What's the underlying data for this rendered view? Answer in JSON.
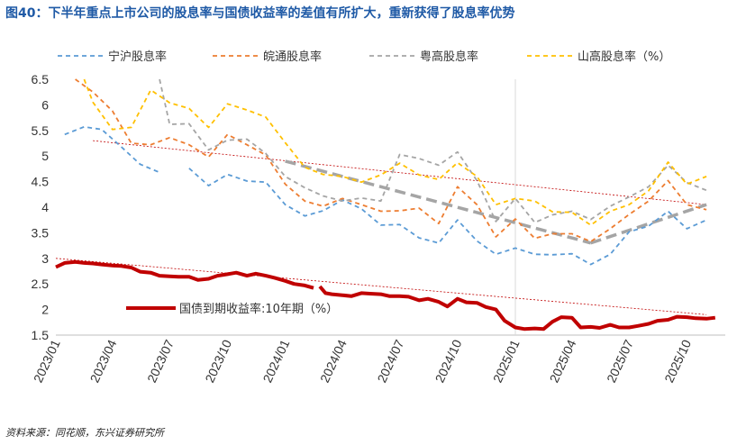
{
  "source": "资料来源：同花顺，东兴证券研究所",
  "colors": {
    "ningbo": "#5b9bd5",
    "anhui": "#ed7d31",
    "guangdong": "#a5a5a5",
    "shandong": "#ffc000",
    "bond": "#c00000",
    "trend_bond": "#c00000",
    "trend_yield": "#a5a5a5"
  },
  "chart_data": {
    "type": "line",
    "title": "图40：下半年重点上市公司的股息率与国债收益率的差值有所扩大，重新获得了股息率优势",
    "ylim": [
      1.5,
      6.5
    ],
    "yticks": [
      "6.5",
      "6",
      "5.5",
      "5",
      "4.5",
      "4",
      "3.5",
      "3",
      "2.5",
      "2",
      "1.5"
    ],
    "xticks": [
      "2023/01",
      "2023/04",
      "2023/07",
      "2023/10",
      "2024/01",
      "2024/04",
      "2024/07",
      "2024/10",
      "2025/01",
      "2025/04",
      "2025/07",
      "2025/10"
    ],
    "x_start": "2023-01-01",
    "x_end": "2025-12-01",
    "legend": {
      "ningbo": "宁沪股息率",
      "anhui": "皖通股息率",
      "guangdong": "粤高股息率",
      "shandong": "山高股息率（%）",
      "bond": "国债到期收益率:10年期（%）"
    },
    "series": [
      {
        "key": "ningbo",
        "name": "宁沪股息率",
        "style": "dashed",
        "segments": [
          [
            [
              "2023-01-15",
              5.42
            ],
            [
              "2023-02-15",
              5.57
            ],
            [
              "2023-03-15",
              5.52
            ],
            [
              "2023-04-15",
              5.18
            ],
            [
              "2023-05-15",
              4.84
            ],
            [
              "2023-06-15",
              4.68
            ]
          ],
          [
            [
              "2023-08-01",
              4.76
            ],
            [
              "2023-09-01",
              4.42
            ],
            [
              "2023-10-01",
              4.64
            ],
            [
              "2023-11-01",
              4.51
            ],
            [
              "2023-12-01",
              4.49
            ],
            [
              "2024-01-01",
              4.05
            ],
            [
              "2024-02-01",
              3.83
            ],
            [
              "2024-03-01",
              3.93
            ],
            [
              "2024-04-01",
              4.14
            ],
            [
              "2024-05-01",
              3.97
            ],
            [
              "2024-06-01",
              3.65
            ],
            [
              "2024-07-01",
              3.66
            ],
            [
              "2024-08-01",
              3.4
            ],
            [
              "2024-09-01",
              3.3
            ],
            [
              "2024-10-01",
              3.75
            ],
            [
              "2024-11-01",
              3.34
            ],
            [
              "2024-12-01",
              3.08
            ],
            [
              "2025-01-01",
              3.2
            ],
            [
              "2025-02-01",
              3.08
            ],
            [
              "2025-03-01",
              3.07
            ],
            [
              "2025-04-01",
              3.09
            ],
            [
              "2025-05-01",
              2.88
            ],
            [
              "2025-06-01",
              3.08
            ],
            [
              "2025-07-01",
              3.52
            ],
            [
              "2025-08-01",
              3.63
            ],
            [
              "2025-09-01",
              3.92
            ],
            [
              "2025-10-01",
              3.58
            ],
            [
              "2025-11-01",
              3.75
            ]
          ]
        ]
      },
      {
        "key": "anhui",
        "name": "皖通股息率",
        "style": "dashed",
        "segments": [
          [
            [
              "2023-02-01",
              6.5
            ],
            [
              "2023-03-01",
              6.25
            ],
            [
              "2023-04-01",
              5.88
            ],
            [
              "2023-05-01",
              5.25
            ],
            [
              "2023-06-01",
              5.22
            ],
            [
              "2023-07-01",
              5.36
            ],
            [
              "2023-08-01",
              5.22
            ],
            [
              "2023-09-01",
              4.98
            ],
            [
              "2023-10-01",
              5.42
            ],
            [
              "2023-11-01",
              5.22
            ],
            [
              "2023-12-01",
              5.02
            ],
            [
              "2024-01-01",
              4.45
            ],
            [
              "2024-02-01",
              4.12
            ],
            [
              "2024-03-01",
              4.02
            ],
            [
              "2024-04-01",
              4.17
            ],
            [
              "2024-05-01",
              4.05
            ],
            [
              "2024-06-01",
              3.92
            ],
            [
              "2024-07-01",
              3.93
            ],
            [
              "2024-08-01",
              3.98
            ],
            [
              "2024-09-01",
              3.68
            ],
            [
              "2024-10-01",
              4.4
            ],
            [
              "2024-11-01",
              4.05
            ],
            [
              "2024-12-01",
              3.42
            ],
            [
              "2025-01-01",
              3.77
            ],
            [
              "2025-02-01",
              3.39
            ],
            [
              "2025-03-01",
              3.48
            ],
            [
              "2025-04-01",
              3.48
            ],
            [
              "2025-05-01",
              3.33
            ],
            [
              "2025-06-01",
              3.58
            ],
            [
              "2025-07-01",
              3.86
            ],
            [
              "2025-08-01",
              4.12
            ],
            [
              "2025-09-01",
              4.52
            ],
            [
              "2025-10-01",
              4.05
            ],
            [
              "2025-11-01",
              3.95
            ]
          ]
        ]
      },
      {
        "key": "guangdong",
        "name": "粤高股息率",
        "style": "dashed",
        "segments": [
          [
            [
              "2023-06-15",
              6.5
            ],
            [
              "2023-07-01",
              5.62
            ],
            [
              "2023-08-01",
              5.63
            ],
            [
              "2023-09-01",
              5.12
            ],
            [
              "2023-10-01",
              5.31
            ],
            [
              "2023-11-01",
              5.33
            ],
            [
              "2023-12-01",
              5.05
            ],
            [
              "2024-01-01",
              4.6
            ],
            [
              "2024-02-01",
              4.38
            ],
            [
              "2024-03-01",
              4.22
            ],
            [
              "2024-04-01",
              4.12
            ],
            [
              "2024-05-01",
              4.18
            ],
            [
              "2024-06-01",
              4.12
            ],
            [
              "2024-07-01",
              5.03
            ],
            [
              "2024-08-01",
              4.95
            ],
            [
              "2024-09-01",
              4.82
            ],
            [
              "2024-10-01",
              5.08
            ],
            [
              "2024-11-01",
              4.52
            ],
            [
              "2024-12-01",
              3.72
            ],
            [
              "2025-01-01",
              4.17
            ],
            [
              "2025-02-01",
              3.7
            ],
            [
              "2025-03-01",
              3.85
            ],
            [
              "2025-04-01",
              3.92
            ],
            [
              "2025-05-01",
              3.76
            ],
            [
              "2025-06-01",
              4.02
            ],
            [
              "2025-07-01",
              4.2
            ],
            [
              "2025-08-01",
              4.4
            ],
            [
              "2025-09-01",
              4.82
            ],
            [
              "2025-10-01",
              4.48
            ],
            [
              "2025-11-01",
              4.33
            ]
          ]
        ]
      },
      {
        "key": "shandong",
        "name": "山高股息率（%）",
        "style": "dashed",
        "segments": [
          [
            [
              "2023-02-15",
              6.5
            ],
            [
              "2023-03-01",
              6.05
            ],
            [
              "2023-04-01",
              5.52
            ],
            [
              "2023-05-01",
              5.56
            ],
            [
              "2023-06-01",
              6.29
            ],
            [
              "2023-07-01",
              6.04
            ],
            [
              "2023-08-01",
              5.93
            ],
            [
              "2023-09-01",
              5.56
            ],
            [
              "2023-10-01",
              6.02
            ],
            [
              "2023-11-01",
              5.9
            ],
            [
              "2023-12-01",
              5.76
            ],
            [
              "2024-01-01",
              5.26
            ],
            [
              "2024-02-01",
              4.78
            ],
            [
              "2024-03-01",
              4.64
            ],
            [
              "2024-04-01",
              4.6
            ],
            [
              "2024-05-01",
              4.49
            ],
            [
              "2024-06-01",
              4.63
            ],
            [
              "2024-07-01",
              4.86
            ],
            [
              "2024-08-01",
              4.63
            ],
            [
              "2024-09-01",
              4.54
            ],
            [
              "2024-10-01",
              4.87
            ],
            [
              "2024-11-01",
              4.6
            ],
            [
              "2024-12-01",
              4.05
            ],
            [
              "2025-01-01",
              4.17
            ],
            [
              "2025-02-01",
              4.12
            ],
            [
              "2025-03-01",
              3.91
            ],
            [
              "2025-04-01",
              3.9
            ],
            [
              "2025-05-01",
              3.65
            ],
            [
              "2025-06-01",
              3.92
            ],
            [
              "2025-07-01",
              4.05
            ],
            [
              "2025-08-01",
              4.32
            ],
            [
              "2025-09-01",
              4.88
            ],
            [
              "2025-10-01",
              4.45
            ],
            [
              "2025-11-01",
              4.6
            ]
          ]
        ]
      },
      {
        "key": "bond",
        "name": "国债到期收益率:10年期（%）",
        "style": "solid",
        "segments": [
          [
            [
              "2023-01-01",
              2.83
            ],
            [
              "2023-01-15",
              2.91
            ],
            [
              "2023-02-01",
              2.93
            ],
            [
              "2023-02-15",
              2.91
            ],
            [
              "2023-03-01",
              2.9
            ],
            [
              "2023-03-15",
              2.88
            ],
            [
              "2023-04-01",
              2.86
            ],
            [
              "2023-04-15",
              2.85
            ],
            [
              "2023-05-01",
              2.82
            ],
            [
              "2023-05-15",
              2.74
            ],
            [
              "2023-06-01",
              2.72
            ],
            [
              "2023-06-15",
              2.66
            ],
            [
              "2023-07-01",
              2.65
            ],
            [
              "2023-07-15",
              2.64
            ],
            [
              "2023-08-01",
              2.64
            ],
            [
              "2023-08-15",
              2.58
            ],
            [
              "2023-09-01",
              2.6
            ],
            [
              "2023-09-15",
              2.66
            ],
            [
              "2023-10-01",
              2.69
            ],
            [
              "2023-10-15",
              2.72
            ],
            [
              "2023-11-01",
              2.66
            ],
            [
              "2023-11-15",
              2.7
            ],
            [
              "2023-12-01",
              2.66
            ],
            [
              "2023-12-15",
              2.62
            ],
            [
              "2024-01-01",
              2.56
            ],
            [
              "2024-01-15",
              2.5
            ],
            [
              "2024-02-01",
              2.47
            ],
            [
              "2024-02-15",
              2.42
            ]
          ],
          [
            [
              "2024-02-25",
              2.45
            ],
            [
              "2024-03-05",
              2.32
            ],
            [
              "2024-03-15",
              2.3
            ],
            [
              "2024-04-01",
              2.28
            ],
            [
              "2024-04-15",
              2.26
            ],
            [
              "2024-05-01",
              2.32
            ],
            [
              "2024-05-15",
              2.31
            ],
            [
              "2024-06-01",
              2.3
            ],
            [
              "2024-06-15",
              2.26
            ],
            [
              "2024-07-01",
              2.26
            ],
            [
              "2024-07-15",
              2.25
            ],
            [
              "2024-08-01",
              2.18
            ],
            [
              "2024-08-15",
              2.21
            ],
            [
              "2024-09-01",
              2.15
            ],
            [
              "2024-09-15",
              2.06
            ],
            [
              "2024-10-01",
              2.21
            ],
            [
              "2024-10-15",
              2.14
            ],
            [
              "2024-11-01",
              2.13
            ],
            [
              "2024-11-15",
              2.05
            ],
            [
              "2024-12-01",
              2.0
            ],
            [
              "2024-12-15",
              1.78
            ],
            [
              "2025-01-01",
              1.65
            ],
            [
              "2025-01-15",
              1.62
            ],
            [
              "2025-02-01",
              1.63
            ],
            [
              "2025-02-15",
              1.62
            ],
            [
              "2025-03-01",
              1.76
            ],
            [
              "2025-03-15",
              1.85
            ],
            [
              "2025-04-01",
              1.84
            ],
            [
              "2025-04-15",
              1.65
            ],
            [
              "2025-05-01",
              1.66
            ],
            [
              "2025-05-15",
              1.64
            ],
            [
              "2025-06-01",
              1.7
            ],
            [
              "2025-06-15",
              1.65
            ],
            [
              "2025-07-01",
              1.65
            ],
            [
              "2025-07-15",
              1.68
            ],
            [
              "2025-08-01",
              1.72
            ],
            [
              "2025-08-15",
              1.78
            ],
            [
              "2025-09-01",
              1.8
            ],
            [
              "2025-09-15",
              1.86
            ],
            [
              "2025-10-01",
              1.85
            ],
            [
              "2025-10-15",
              1.83
            ],
            [
              "2025-11-01",
              1.82
            ],
            [
              "2025-11-15",
              1.84
            ]
          ]
        ]
      }
    ],
    "trend_lines": [
      {
        "key": "trend_upper",
        "color_key": "trend_bond",
        "style": "thin-dotted",
        "points": [
          [
            "2023-03-01",
            5.3
          ],
          [
            "2025-11-01",
            4.05
          ]
        ]
      },
      {
        "key": "trend_lower",
        "color_key": "trend_bond",
        "style": "thin-dotted",
        "points": [
          [
            "2023-01-01",
            3.0
          ],
          [
            "2025-11-01",
            1.9
          ]
        ]
      },
      {
        "key": "trend_yield_down",
        "color_key": "trend_yield",
        "style": "thick-dashed",
        "points": [
          [
            "2024-01-01",
            4.9
          ],
          [
            "2025-05-01",
            3.3
          ]
        ]
      },
      {
        "key": "trend_yield_up",
        "color_key": "trend_yield",
        "style": "thick-dashed",
        "points": [
          [
            "2025-05-01",
            3.3
          ],
          [
            "2025-11-01",
            4.05
          ]
        ]
      }
    ]
  }
}
